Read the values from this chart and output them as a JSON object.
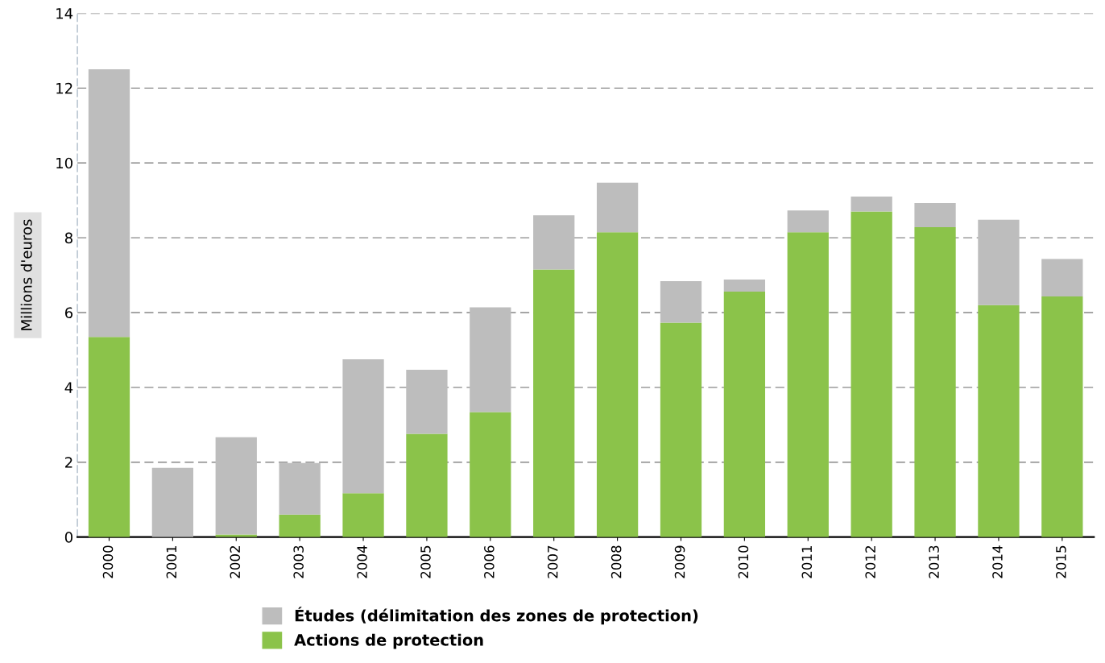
{
  "chart_data": {
    "type": "bar",
    "stacked": true,
    "ylabel": "Millions d'euros",
    "categories": [
      "2000",
      "2001",
      "2002",
      "2003",
      "2004",
      "2005",
      "2006",
      "2007",
      "2008",
      "2009",
      "2010",
      "2011",
      "2012",
      "2013",
      "2014",
      "2015"
    ],
    "series": [
      {
        "name": "Actions de protection",
        "color": "#8bc34a",
        "values": [
          5.35,
          null,
          0.07,
          0.6,
          1.17,
          2.76,
          3.34,
          7.15,
          8.15,
          5.73,
          6.56,
          8.15,
          8.7,
          8.28,
          6.2,
          6.43
        ]
      },
      {
        "name": "Études (délimitation des zones de protection)",
        "color": "#bdbdbd",
        "values": [
          7.15,
          1.85,
          2.6,
          1.38,
          3.58,
          1.71,
          2.8,
          1.45,
          1.32,
          1.11,
          0.32,
          0.58,
          0.4,
          0.65,
          2.28,
          1.0
        ]
      }
    ],
    "ylim": [
      0,
      14
    ],
    "yticks": [
      0,
      2,
      4,
      6,
      8,
      10,
      12,
      14
    ],
    "grid": "y",
    "legend": "bottom"
  }
}
